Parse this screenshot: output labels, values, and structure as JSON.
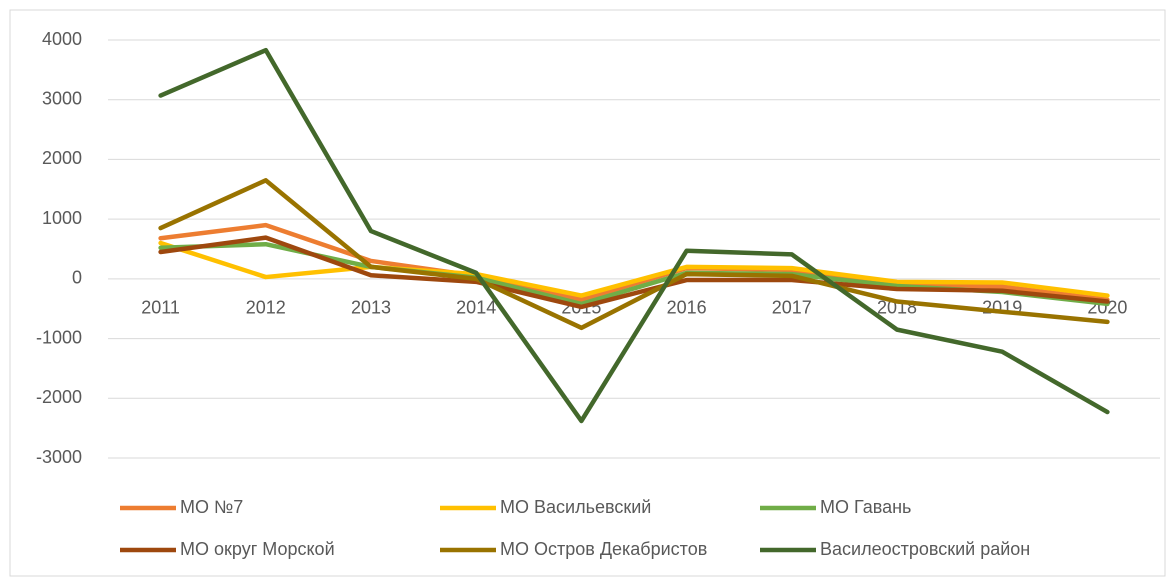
{
  "chart_data": {
    "type": "line",
    "categories": [
      "2011",
      "2012",
      "2013",
      "2014",
      "2015",
      "2016",
      "2017",
      "2018",
      "2019",
      "2020"
    ],
    "series": [
      {
        "name": "МО №7",
        "color": "#ed7d31",
        "values": [
          680,
          900,
          300,
          50,
          -350,
          180,
          150,
          -80,
          -130,
          -350
        ]
      },
      {
        "name": "МО Васильевский",
        "color": "#ffc000",
        "values": [
          600,
          30,
          200,
          80,
          -280,
          200,
          180,
          -50,
          -60,
          -280
        ]
      },
      {
        "name": "МО Гавань",
        "color": "#70ad47",
        "values": [
          520,
          580,
          200,
          20,
          -420,
          100,
          80,
          -120,
          -220,
          -420
        ]
      },
      {
        "name": "МО округ Морской",
        "color": "#9e480e",
        "values": [
          450,
          690,
          60,
          -50,
          -470,
          -20,
          -20,
          -170,
          -200,
          -380
        ]
      },
      {
        "name": "МО Остров Декабристов",
        "color": "#997300",
        "values": [
          850,
          1650,
          200,
          0,
          -820,
          80,
          50,
          -380,
          -550,
          -720
        ]
      },
      {
        "name": "Василеостровский район",
        "color": "#43682b",
        "values": [
          3070,
          3830,
          800,
          100,
          -2380,
          470,
          410,
          -850,
          -1220,
          -2230
        ]
      }
    ],
    "ylim": [
      -3000,
      4000
    ],
    "yticks": [
      -3000,
      -2000,
      -1000,
      0,
      1000,
      2000,
      3000,
      4000
    ],
    "grid": true
  }
}
